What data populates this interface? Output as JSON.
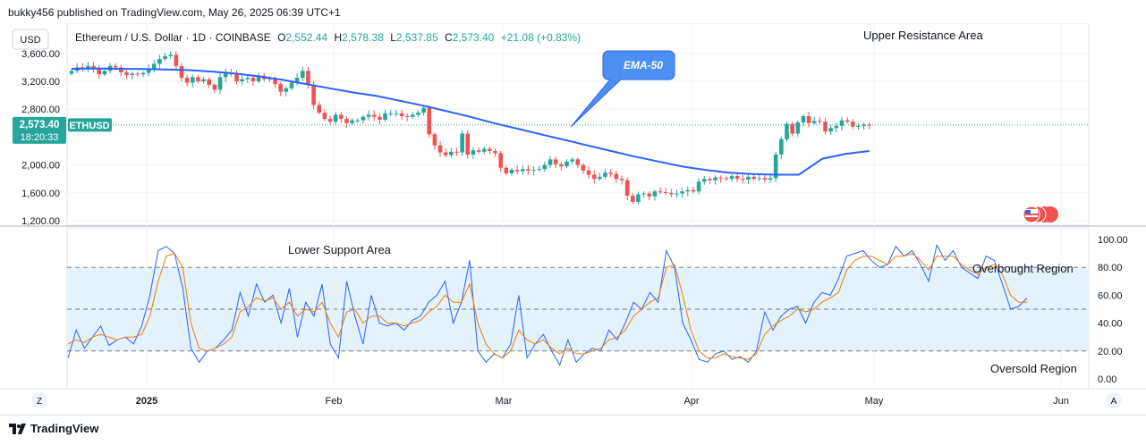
{
  "header": {
    "published_by": "bukky456 published on TradingView.com, May 26, 2025 06:39 UTC+1"
  },
  "legend": {
    "symbol": "Ethereum / U.S. Dollar · 1D · COINBASE",
    "o_label": "O",
    "o": "2,552.44",
    "h_label": "H",
    "h": "2,578.38",
    "l_label": "L",
    "l": "2,537.85",
    "c_label": "C",
    "c": "2,573.40",
    "change": "+21.08 (+0.83%)"
  },
  "currency_button": "USD",
  "price_tag": {
    "price": "2,573.40",
    "countdown": "18:20:33",
    "ticker": "ETHUSD"
  },
  "annotations": {
    "ema": "EMA-50",
    "upper_resistance": "Upper Resistance Area",
    "lower_support": "Lower Support Area",
    "overbought": "Overbought Region",
    "oversold": "Oversold Region"
  },
  "footer": {
    "z_button": "Z",
    "a_button": "A",
    "logo_text": "TradingView"
  },
  "colors": {
    "up": "#26a69a",
    "down": "#ef5350",
    "ema": "#2962ff",
    "stoch_k": "#2962ff",
    "stoch_d": "#f57c00",
    "band": "#e3f2fd"
  },
  "chart_data": [
    {
      "type": "candlestick",
      "symbol": "ETHUSD",
      "interval": "1D",
      "ylim": [
        1050,
        3750
      ],
      "y_ticks": [
        1200,
        1600,
        2000,
        2800,
        3200,
        3600
      ],
      "y_tick_labels": [
        "1,200.00",
        "1,600.00",
        "2,000.00",
        "2,800.00",
        "3,200.00",
        "3,600.00"
      ],
      "x_ticks": [
        "2025",
        "Feb",
        "Mar",
        "Apr",
        "May",
        "Jun"
      ],
      "last_price": 2573.4,
      "closes": [
        3350,
        3400,
        3380,
        3420,
        3380,
        3300,
        3350,
        3420,
        3400,
        3330,
        3290,
        3310,
        3300,
        3320,
        3380,
        3450,
        3520,
        3560,
        3580,
        3420,
        3250,
        3180,
        3260,
        3200,
        3230,
        3150,
        3080,
        3260,
        3320,
        3300,
        3200,
        3230,
        3250,
        3200,
        3280,
        3230,
        3240,
        3160,
        3050,
        3100,
        3180,
        3250,
        3350,
        3150,
        2860,
        2750,
        2660,
        2620,
        2720,
        2660,
        2600,
        2640,
        2640,
        2690,
        2720,
        2690,
        2650,
        2740,
        2740,
        2740,
        2700,
        2690,
        2720,
        2750,
        2820,
        2440,
        2280,
        2180,
        2140,
        2190,
        2180,
        2450,
        2150,
        2210,
        2190,
        2230,
        2200,
        2170,
        1960,
        1880,
        1930,
        1910,
        1940,
        1920,
        1930,
        1940,
        2000,
        2080,
        2010,
        1980,
        2050,
        2080,
        2000,
        1920,
        1860,
        1800,
        1830,
        1890,
        1870,
        1800,
        1780,
        1560,
        1470,
        1580,
        1590,
        1550,
        1620,
        1610,
        1600,
        1580,
        1590,
        1620,
        1640,
        1620,
        1760,
        1800,
        1780,
        1820,
        1810,
        1800,
        1840,
        1800,
        1790,
        1830,
        1800,
        1810,
        1790,
        1810,
        2150,
        2370,
        2590,
        2450,
        2610,
        2700,
        2600,
        2630,
        2620,
        2480,
        2530,
        2560,
        2640,
        2620,
        2550,
        2560,
        2580,
        2573
      ],
      "ema50": [
        3380,
        3385,
        3380,
        3375,
        3370,
        3360,
        3340,
        3310,
        3270,
        3220,
        3160,
        3100,
        3040,
        2990,
        2920,
        2850,
        2770,
        2690,
        2600,
        2520,
        2440,
        2360,
        2280,
        2200,
        2120,
        2050,
        1980,
        1930,
        1890,
        1870,
        1860,
        1860,
        2090,
        2160,
        2200
      ],
      "ema50_note": "EMA-50 sampled every ~4.3 bars",
      "values_note": "Prices estimated from gridlines"
    },
    {
      "type": "line",
      "name": "Stochastic",
      "ylim": [
        0,
        100
      ],
      "y_ticks": [
        0,
        20,
        40,
        60,
        80,
        100
      ],
      "y_tick_labels": [
        "0.00",
        "20.00",
        "40.00",
        "60.00",
        "80.00",
        "100.00"
      ],
      "levels": [
        20,
        50,
        80
      ],
      "k": [
        15,
        35,
        22,
        30,
        38,
        24,
        28,
        30,
        25,
        38,
        60,
        92,
        95,
        90,
        65,
        22,
        12,
        20,
        22,
        28,
        35,
        62,
        45,
        68,
        55,
        60,
        40,
        65,
        30,
        55,
        45,
        68,
        25,
        15,
        70,
        45,
        25,
        60,
        40,
        38,
        40,
        35,
        42,
        45,
        55,
        60,
        70,
        40,
        55,
        85,
        20,
        12,
        18,
        15,
        25,
        60,
        15,
        25,
        32,
        20,
        10,
        28,
        12,
        18,
        22,
        20,
        35,
        28,
        40,
        55,
        50,
        62,
        55,
        92,
        80,
        40,
        28,
        14,
        12,
        18,
        20,
        14,
        16,
        12,
        20,
        48,
        35,
        45,
        50,
        52,
        40,
        55,
        62,
        60,
        72,
        88,
        90,
        92,
        85,
        80,
        82,
        95,
        88,
        92,
        82,
        70,
        96,
        85,
        92,
        80,
        76,
        72,
        88,
        85,
        68,
        50,
        52,
        58
      ],
      "d": [
        25,
        28,
        26,
        30,
        32,
        30,
        28,
        30,
        30,
        32,
        45,
        70,
        88,
        90,
        80,
        40,
        22,
        20,
        22,
        25,
        30,
        48,
        52,
        58,
        56,
        58,
        50,
        55,
        45,
        50,
        48,
        55,
        40,
        30,
        48,
        50,
        40,
        45,
        45,
        40,
        40,
        38,
        40,
        42,
        48,
        52,
        60,
        55,
        55,
        68,
        40,
        25,
        18,
        15,
        20,
        35,
        28,
        25,
        28,
        22,
        18,
        22,
        18,
        18,
        20,
        22,
        28,
        30,
        35,
        45,
        50,
        55,
        58,
        80,
        82,
        60,
        35,
        20,
        15,
        15,
        18,
        16,
        15,
        14,
        18,
        32,
        38,
        42,
        45,
        50,
        48,
        50,
        55,
        58,
        62,
        78,
        85,
        88,
        88,
        85,
        82,
        88,
        88,
        90,
        85,
        78,
        88,
        88,
        88,
        82,
        78,
        75,
        80,
        82,
        75,
        60,
        55,
        55
      ],
      "values_note": "Oscillator values estimated from gridlines"
    }
  ]
}
